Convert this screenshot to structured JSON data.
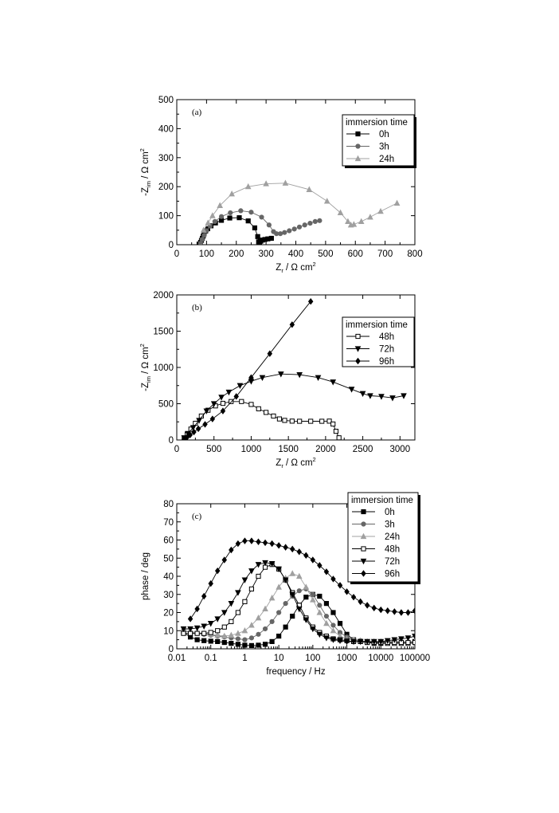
{
  "chart_data": [
    {
      "type": "line",
      "panel_label": "(a)",
      "xlabel": "Z",
      "xlabel_sub": "r",
      "xlabel_rest": " / Ω cm",
      "xlabel_sup": "2",
      "ylabel": "-Z",
      "ylabel_sub": "im",
      "ylabel_rest": " / Ω cm",
      "ylabel_sup": "2",
      "xlim": [
        0,
        800
      ],
      "ylim": [
        0,
        500
      ],
      "xticks": [
        0,
        100,
        200,
        300,
        400,
        500,
        600,
        700,
        800
      ],
      "yticks": [
        0,
        100,
        200,
        300,
        400,
        500
      ],
      "legend_title": "immersion time",
      "legend_position": "top-right",
      "series": [
        {
          "name": "0h",
          "marker": "square",
          "filled": true,
          "color": "#000000",
          "x": [
            75,
            80,
            83,
            86,
            89,
            92,
            97,
            104,
            115,
            130,
            150,
            178,
            210,
            240,
            262,
            272,
            275,
            278,
            282,
            288,
            296,
            306,
            318
          ],
          "y": [
            2,
            8,
            15,
            22,
            30,
            38,
            47,
            55,
            65,
            75,
            84,
            92,
            93,
            82,
            58,
            28,
            10,
            8,
            12,
            16,
            18,
            20,
            22
          ]
        },
        {
          "name": "3h",
          "marker": "circle",
          "filled": true,
          "color": "#666666",
          "x": [
            80,
            85,
            92,
            100,
            112,
            128,
            150,
            180,
            215,
            250,
            285,
            310,
            325,
            335,
            348,
            362,
            378,
            395,
            412,
            430,
            448,
            465,
            480
          ],
          "y": [
            5,
            18,
            32,
            48,
            64,
            80,
            97,
            110,
            117,
            112,
            95,
            68,
            45,
            38,
            38,
            42,
            48,
            54,
            61,
            68,
            74,
            80,
            83
          ]
        },
        {
          "name": "24h",
          "marker": "triangle-up",
          "filled": true,
          "color": "#a0a0a0",
          "x": [
            90,
            105,
            120,
            145,
            185,
            240,
            300,
            365,
            445,
            505,
            550,
            575,
            585,
            595,
            620,
            650,
            685,
            740
          ],
          "y": [
            50,
            75,
            100,
            135,
            175,
            200,
            210,
            212,
            190,
            150,
            110,
            80,
            68,
            70,
            80,
            95,
            115,
            143
          ]
        }
      ]
    },
    {
      "type": "line",
      "panel_label": "(b)",
      "xlabel": "Z",
      "xlabel_sub": "r",
      "xlabel_rest": " / Ω cm",
      "xlabel_sup": "2",
      "ylabel": "-Z",
      "ylabel_sub": "im",
      "ylabel_rest": " / Ω cm",
      "ylabel_sup": "2",
      "xlim": [
        0,
        3200
      ],
      "ylim": [
        0,
        2000
      ],
      "xticks": [
        0,
        500,
        1000,
        1500,
        2000,
        2500,
        3000
      ],
      "yticks": [
        0,
        500,
        1000,
        1500,
        2000
      ],
      "legend_title": "immersion time",
      "legend_position": "top-right",
      "series": [
        {
          "name": "48h",
          "marker": "square",
          "filled": false,
          "color": "#000000",
          "x": [
            100,
            140,
            190,
            250,
            330,
            420,
            520,
            620,
            730,
            870,
            1000,
            1100,
            1200,
            1300,
            1380,
            1450,
            1550,
            1650,
            1800,
            1950,
            2050,
            2100,
            2140,
            2180
          ],
          "y": [
            20,
            80,
            150,
            230,
            330,
            410,
            470,
            505,
            530,
            530,
            490,
            430,
            380,
            330,
            290,
            270,
            260,
            258,
            258,
            258,
            260,
            220,
            120,
            30
          ]
        },
        {
          "name": "72h",
          "marker": "triangle-down",
          "filled": true,
          "color": "#000000",
          "x": [
            100,
            150,
            220,
            300,
            400,
            500,
            600,
            700,
            850,
            1000,
            1150,
            1400,
            1650,
            1900,
            2100,
            2350,
            2500,
            2600,
            2750,
            2900,
            3050
          ],
          "y": [
            30,
            90,
            170,
            270,
            400,
            500,
            590,
            660,
            750,
            810,
            860,
            910,
            900,
            860,
            800,
            700,
            640,
            610,
            600,
            580,
            610
          ]
        },
        {
          "name": "96h",
          "marker": "diamond",
          "filled": true,
          "color": "#000000",
          "x": [
            100,
            140,
            180,
            230,
            290,
            380,
            480,
            620,
            800,
            1000,
            1250,
            1550,
            1800
          ],
          "y": [
            10,
            40,
            70,
            110,
            155,
            215,
            290,
            400,
            600,
            860,
            1190,
            1590,
            1910
          ]
        }
      ]
    },
    {
      "type": "line",
      "panel_label": "(c)",
      "xscale": "log",
      "xlabel": "frequency / Hz",
      "ylabel": "phase / deg",
      "xlim": [
        0.01,
        100000
      ],
      "ylim": [
        0,
        80
      ],
      "xticks": [
        0.01,
        0.1,
        1,
        10,
        100,
        1000,
        10000,
        100000
      ],
      "xtick_labels": [
        "0.01",
        "0.1",
        "1",
        "10",
        "100",
        "1000",
        "10000",
        "100000"
      ],
      "yticks": [
        0,
        10,
        20,
        30,
        40,
        50,
        60,
        70,
        80
      ],
      "legend_title": "immersion time",
      "legend_position": "top-right",
      "series": [
        {
          "name": "0h",
          "marker": "square",
          "filled": true,
          "color": "#000000",
          "x": [
            0.0158,
            0.0251,
            0.0398,
            0.0631,
            0.1,
            0.158,
            0.251,
            0.398,
            0.631,
            1,
            1.58,
            2.51,
            3.98,
            6.31,
            10,
            15.8,
            25.1,
            39.8,
            63.1,
            100,
            158,
            251,
            398,
            631,
            1000,
            1580,
            2510,
            3980,
            6310,
            10000,
            15800,
            25100,
            39800,
            63100,
            100000
          ],
          "y": [
            9,
            6.5,
            5,
            4.5,
            4.2,
            4,
            3.5,
            3,
            2.5,
            2,
            1.8,
            2,
            2.5,
            4,
            7,
            12,
            18,
            24,
            28.5,
            30,
            29,
            25,
            20,
            14,
            8,
            5,
            4,
            3.5,
            3,
            3,
            3,
            3,
            3,
            3,
            4
          ]
        },
        {
          "name": "3h",
          "marker": "circle",
          "filled": true,
          "color": "#666666",
          "x": [
            0.0158,
            0.0251,
            0.0398,
            0.0631,
            0.1,
            0.158,
            0.251,
            0.398,
            0.631,
            1,
            1.58,
            2.51,
            3.98,
            6.31,
            10,
            15.8,
            25.1,
            39.8,
            63.1,
            100,
            158,
            251,
            398,
            631,
            1000,
            1580,
            2510,
            3980,
            6310,
            10000,
            15800,
            25100,
            39800,
            63100,
            100000
          ],
          "y": [
            10,
            9,
            8.5,
            8,
            7.5,
            7,
            6.5,
            6,
            5.5,
            5,
            6,
            8,
            11,
            15,
            20,
            25,
            29,
            32,
            33,
            30,
            24,
            18,
            13,
            9,
            6.5,
            5,
            4.5,
            4,
            3.5,
            3.5,
            3,
            3,
            3,
            3,
            3
          ]
        },
        {
          "name": "24h",
          "marker": "triangle-up",
          "filled": true,
          "color": "#a0a0a0",
          "x": [
            0.0158,
            0.0251,
            0.0398,
            0.0631,
            0.1,
            0.158,
            0.251,
            0.398,
            0.631,
            1,
            1.58,
            2.51,
            3.98,
            6.31,
            10,
            15.8,
            25.1,
            39.8,
            63.1,
            100,
            158,
            251,
            398,
            631,
            1000,
            1580,
            2510,
            3980,
            6310,
            10000,
            15800,
            25100,
            39800,
            63100,
            100000
          ],
          "y": [
            10,
            9.5,
            9,
            8.5,
            8,
            7.5,
            7,
            7.5,
            8.5,
            10,
            13,
            17,
            22,
            28,
            34,
            39,
            41.5,
            40,
            34,
            27,
            20,
            14,
            10,
            7,
            5.5,
            5,
            4.5,
            4,
            4,
            4,
            4,
            4,
            4,
            4,
            4
          ]
        },
        {
          "name": "48h",
          "marker": "square",
          "filled": false,
          "color": "#000000",
          "x": [
            0.0158,
            0.0251,
            0.0398,
            0.0631,
            0.1,
            0.158,
            0.251,
            0.398,
            0.631,
            1,
            1.58,
            2.51,
            3.98,
            6.31,
            10,
            15.8,
            25.1,
            39.8,
            63.1,
            100,
            158,
            251,
            398,
            631,
            1000,
            1580,
            2510,
            3980,
            6310,
            10000,
            15800,
            25100,
            39800,
            63100,
            100000
          ],
          "y": [
            8.5,
            8.5,
            8.5,
            8.5,
            9,
            10,
            12,
            15,
            20,
            26,
            33,
            40,
            45,
            46.5,
            44,
            38,
            31,
            24,
            17,
            12,
            9,
            7,
            5.5,
            5,
            4.5,
            4,
            4,
            3.5,
            3.5,
            3.5,
            3.5,
            3.5,
            3.5,
            3.5,
            3.5
          ]
        },
        {
          "name": "72h",
          "marker": "triangle-down",
          "filled": true,
          "color": "#000000",
          "x": [
            0.0158,
            0.0251,
            0.0398,
            0.0631,
            0.1,
            0.158,
            0.251,
            0.398,
            0.631,
            1,
            1.58,
            2.51,
            3.98,
            6.31,
            10,
            15.8,
            25.1,
            39.8,
            63.1,
            100,
            158,
            251,
            398,
            631,
            1000,
            1580,
            2510,
            3980,
            6310,
            10000,
            15800,
            25100,
            39800,
            63100,
            100000
          ],
          "y": [
            11,
            11,
            11.5,
            12.5,
            14,
            16.5,
            20,
            25,
            31,
            38,
            43,
            46.5,
            47.5,
            47,
            44,
            38,
            30,
            22,
            16,
            11,
            8,
            6,
            5,
            4.5,
            4,
            4,
            4,
            4,
            4,
            4,
            4.5,
            5,
            5.5,
            6,
            7
          ]
        },
        {
          "name": "96h",
          "marker": "diamond",
          "filled": true,
          "color": "#000000",
          "x": [
            0.0251,
            0.0398,
            0.0631,
            0.1,
            0.158,
            0.251,
            0.398,
            0.631,
            1,
            1.58,
            2.51,
            3.98,
            6.31,
            10,
            15.8,
            25.1,
            39.8,
            63.1,
            100,
            158,
            251,
            398,
            631,
            1000,
            1580,
            2510,
            3980,
            6310,
            10000,
            15800,
            25100,
            39800,
            63100,
            100000
          ],
          "y": [
            16.5,
            22,
            29,
            36,
            43,
            49,
            54.5,
            58,
            59.5,
            59.5,
            59,
            58.5,
            58,
            57,
            56,
            55,
            53.5,
            51.5,
            49,
            46,
            42.5,
            38.5,
            35,
            31.5,
            28.5,
            26,
            24,
            22.5,
            21.5,
            21,
            20.5,
            20,
            20,
            21
          ]
        }
      ]
    }
  ]
}
